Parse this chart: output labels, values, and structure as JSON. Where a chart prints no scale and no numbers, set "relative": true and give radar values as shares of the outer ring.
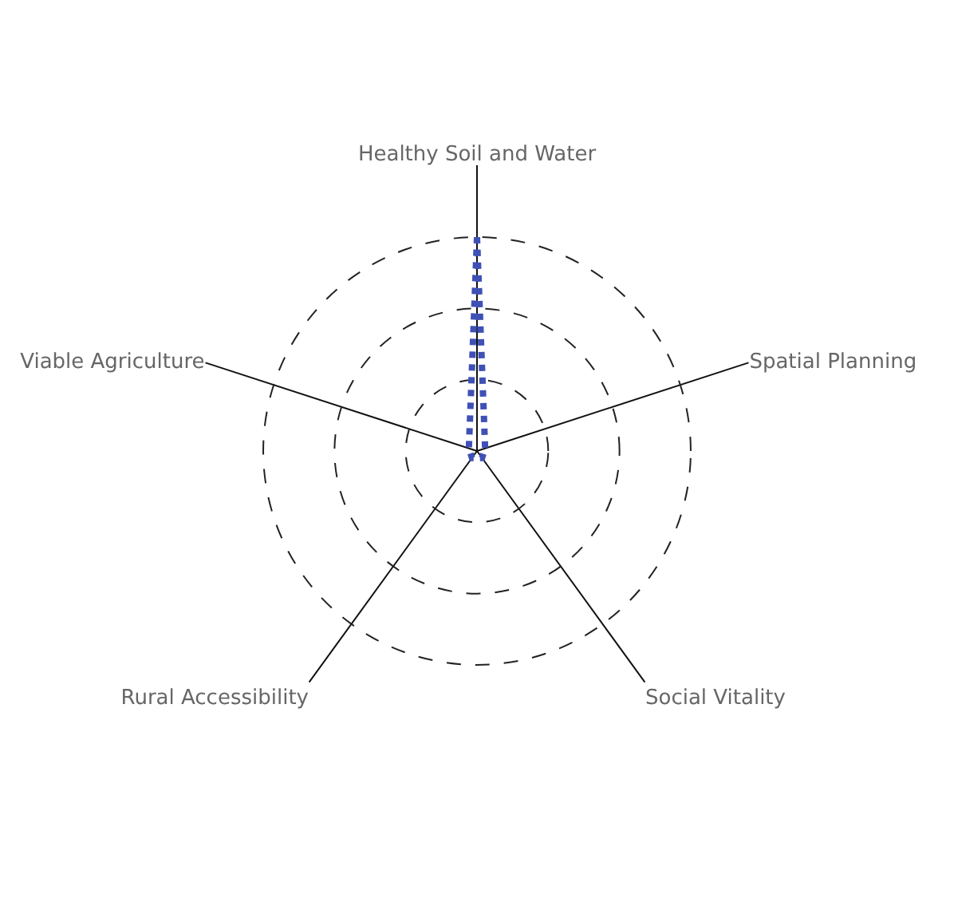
{
  "chart_data": {
    "type": "radar",
    "relative": true,
    "categories": [
      "Healthy Soil and Water",
      "Spatial Planning",
      "Social Vitality",
      "Rural Accessibility",
      "Viable Agriculture"
    ],
    "series": [
      {
        "color": "#3f51b5",
        "values": [
          0.75,
          0.03,
          0.03,
          0.03,
          0.03
        ]
      }
    ],
    "line_style": "dotted",
    "marker": "none",
    "grid": true
  }
}
